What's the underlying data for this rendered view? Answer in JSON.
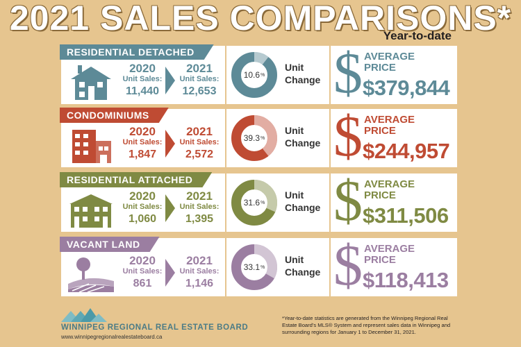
{
  "header": {
    "title": "2021 SALES COMPARISONS*",
    "subtitle": "Year-to-date"
  },
  "rows": [
    {
      "banner": "RESIDENTIAL DETACHED",
      "color": "#5d8a97",
      "icon": "house-icon",
      "year_a": "2020",
      "year_b": "2021",
      "unit_label": "Unit Sales:",
      "sales_a": "11,440",
      "sales_b": "12,653",
      "change_value": "10.6",
      "change_percent": 10.6,
      "unit_word": "Unit",
      "change_word": "Change",
      "avg_line1": "AVERAGE",
      "avg_line2": "PRICE",
      "price": "$379,844"
    },
    {
      "banner": "CONDOMINIUMS",
      "color": "#bf4b33",
      "icon": "condo-building-icon",
      "year_a": "2020",
      "year_b": "2021",
      "unit_label": "Unit Sales:",
      "sales_a": "1,847",
      "sales_b": "2,572",
      "change_value": "39.3",
      "change_percent": 39.3,
      "unit_word": "Unit",
      "change_word": "Change",
      "avg_line1": "AVERAGE",
      "avg_line2": "PRICE",
      "price": "$244,957"
    },
    {
      "banner": "RESIDENTIAL ATTACHED",
      "color": "#7f8a43",
      "icon": "townhouse-icon",
      "year_a": "2020",
      "year_b": "2021",
      "unit_label": "Unit Sales:",
      "sales_a": "1,060",
      "sales_b": "1,395",
      "change_value": "31.6",
      "change_percent": 31.6,
      "unit_word": "Unit",
      "change_word": "Change",
      "avg_line1": "AVERAGE",
      "avg_line2": "PRICE",
      "price": "$311,506"
    },
    {
      "banner": "VACANT LAND",
      "color": "#9b7ea1",
      "icon": "land-tree-icon",
      "year_a": "2020",
      "year_b": "2021",
      "unit_label": "Unit Sales:",
      "sales_a": "861",
      "sales_b": "1,146",
      "change_value": "33.1",
      "change_percent": 33.1,
      "unit_word": "Unit",
      "change_word": "Change",
      "avg_line1": "AVERAGE",
      "avg_line2": "PRICE",
      "price": "$118,413"
    }
  ],
  "percent_sign": "%",
  "dollar_sign": "$",
  "footer": {
    "brand": "WINNIPEG REGIONAL REAL ESTATE BOARD",
    "url": "www.winnipegregionalrealestateboard.ca",
    "note": "*Year-to-date statistics are generated from the Winnipeg Regional Real Estate Board's MLS® System and represent sales data in Winnipeg and surrounding regions for January 1 to December 31, 2021.",
    "logo_color": "#4b9aa8"
  }
}
